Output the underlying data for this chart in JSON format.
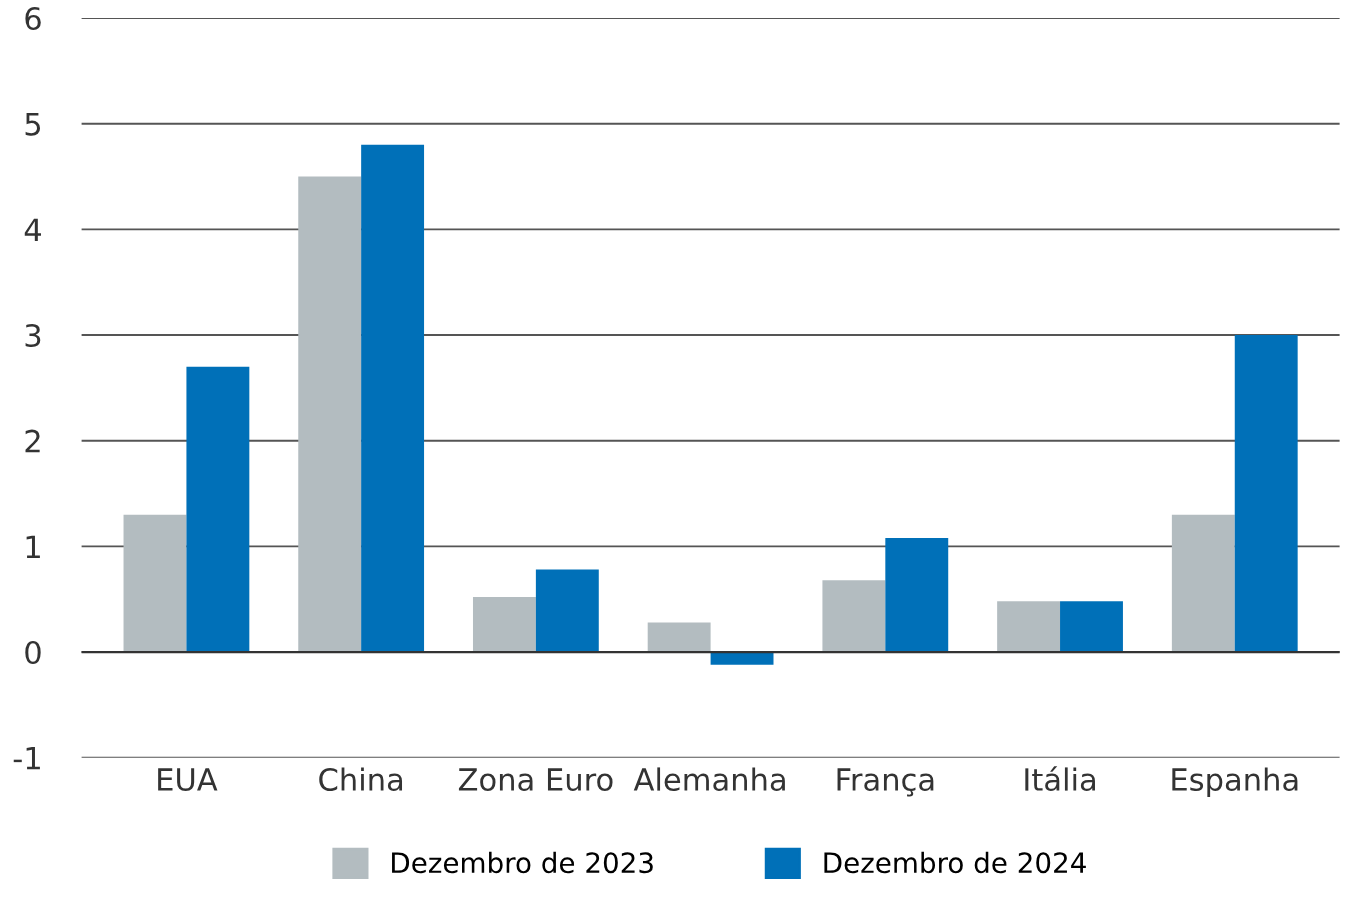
{
  "chart_data": {
    "type": "bar",
    "categories": [
      "EUA",
      "China",
      "Zona Euro",
      "Alemanha",
      "França",
      "Itália",
      "Espanha"
    ],
    "series": [
      {
        "name": "Dezembro de 2023",
        "color": "#b3bcc0",
        "values": [
          1.3,
          4.5,
          0.52,
          0.28,
          0.68,
          0.48,
          1.3
        ]
      },
      {
        "name": "Dezembro de 2024",
        "color": "#0070b8",
        "values": [
          2.7,
          4.8,
          0.78,
          -0.12,
          1.08,
          0.48,
          3.0
        ]
      }
    ],
    "ylim": [
      -1,
      6
    ],
    "yticks": [
      -1,
      0,
      1,
      2,
      3,
      4,
      5,
      6
    ],
    "grid": "y",
    "legend": "bottom"
  }
}
